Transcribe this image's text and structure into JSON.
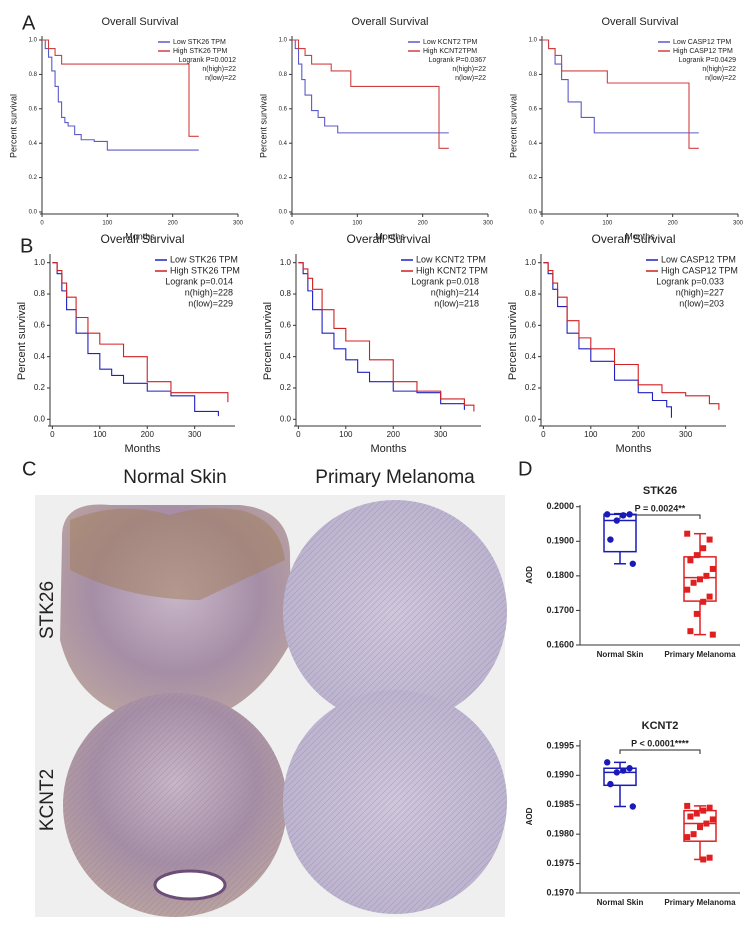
{
  "panel_labels": [
    "A",
    "B",
    "C",
    "D"
  ],
  "ihc": {
    "columns": [
      "Normal Skin",
      "Primary Melanoma"
    ],
    "rows": [
      "STK26",
      "KCNT2"
    ]
  },
  "chart_data": [
    {
      "type": "step",
      "title": "Overall Survival",
      "x_label": "Months",
      "y_label": "Percent survival",
      "xlim": [
        0,
        300
      ],
      "ylim": [
        0,
        1.0
      ],
      "xticks": [
        0,
        100,
        200,
        300
      ],
      "yticks": [
        {
          "value": 0,
          "label": "0.0"
        },
        0.2,
        0.4,
        0.6,
        0.8,
        {
          "value": 1,
          "label": "1.0"
        }
      ],
      "series": [
        {
          "name": "Low STK26 TPM",
          "color": "#5b5bc8",
          "x": [
            0,
            5,
            10,
            15,
            20,
            25,
            30,
            35,
            40,
            50,
            60,
            80,
            100,
            110,
            240
          ],
          "values": [
            1,
            0.95,
            0.9,
            0.82,
            0.73,
            0.64,
            0.55,
            0.52,
            0.5,
            0.45,
            0.42,
            0.41,
            0.36,
            0.36,
            0.36
          ]
        },
        {
          "name": "High STK26 TPM",
          "color": "#d04040",
          "x": [
            0,
            10,
            20,
            30,
            220,
            225,
            240
          ],
          "values": [
            1,
            0.95,
            0.91,
            0.86,
            0.86,
            0.44,
            0.44
          ]
        }
      ],
      "annotations": [
        "Logrank P=0.0012",
        "n(high)=22",
        "n(low)=22"
      ]
    },
    {
      "type": "step",
      "title": "Overall Survival",
      "x_label": "Months",
      "y_label": "Percent survival",
      "xlim": [
        0,
        300
      ],
      "ylim": [
        0,
        1.0
      ],
      "xticks": [
        0,
        100,
        200,
        300
      ],
      "yticks": [
        {
          "value": 0,
          "label": "0.0"
        },
        0.2,
        0.4,
        0.6,
        0.8,
        {
          "value": 1,
          "label": "1.0"
        }
      ],
      "series": [
        {
          "name": "Low KCNT2 TPM",
          "color": "#5b5bc8",
          "x": [
            0,
            5,
            10,
            15,
            20,
            30,
            40,
            50,
            70,
            100,
            240
          ],
          "values": [
            1,
            0.95,
            0.86,
            0.77,
            0.68,
            0.59,
            0.55,
            0.5,
            0.46,
            0.46,
            0.46
          ]
        },
        {
          "name": "High KCNT2TPM",
          "color": "#d04040",
          "x": [
            0,
            10,
            20,
            30,
            60,
            90,
            220,
            225,
            240
          ],
          "values": [
            1,
            0.95,
            0.91,
            0.86,
            0.82,
            0.73,
            0.73,
            0.37,
            0.37
          ]
        }
      ],
      "annotations": [
        "Logrank P=0.0367",
        "n(high)=22",
        "n(low)=22"
      ]
    },
    {
      "type": "step",
      "title": "Overall Survival",
      "x_label": "Months",
      "y_label": "Percent survival",
      "xlim": [
        0,
        300
      ],
      "ylim": [
        0,
        1.0
      ],
      "xticks": [
        0,
        100,
        200,
        300
      ],
      "yticks": [
        {
          "value": 0,
          "label": "0.0"
        },
        0.2,
        0.4,
        0.6,
        0.8,
        {
          "value": 1,
          "label": "1.0"
        }
      ],
      "series": [
        {
          "name": "Low CASP12 TPM",
          "color": "#5b5bc8",
          "x": [
            0,
            10,
            20,
            30,
            40,
            60,
            80,
            240
          ],
          "values": [
            1,
            0.95,
            0.86,
            0.77,
            0.64,
            0.55,
            0.46,
            0.46
          ]
        },
        {
          "name": "High CASP12 TPM",
          "color": "#d04040",
          "x": [
            0,
            10,
            20,
            30,
            100,
            225,
            240
          ],
          "values": [
            1,
            0.95,
            0.91,
            0.82,
            0.75,
            0.37,
            0.37
          ]
        }
      ],
      "annotations": [
        "Logrank P=0.0429",
        "n(high)=22",
        "n(low)=22"
      ]
    },
    {
      "type": "step",
      "title": "Overall Survival",
      "x_label": "Months",
      "y_label": "Percent survival",
      "xlim": [
        -5,
        385
      ],
      "ylim": [
        -0.03,
        1.03
      ],
      "xticks": [
        0,
        100,
        200,
        300
      ],
      "yticks": [
        {
          "value": 0,
          "label": "0.0"
        },
        0.2,
        0.4,
        0.6,
        0.8,
        {
          "value": 1,
          "label": "1.0"
        }
      ],
      "series": [
        {
          "name": "Low STK26 TPM",
          "color": "#2020c0",
          "x": [
            0,
            10,
            20,
            30,
            50,
            75,
            100,
            125,
            150,
            200,
            250,
            300,
            350
          ],
          "values": [
            1,
            0.93,
            0.82,
            0.7,
            0.55,
            0.42,
            0.32,
            0.28,
            0.23,
            0.18,
            0.15,
            0.05,
            0.02
          ]
        },
        {
          "name": "High STK26 TPM",
          "color": "#d02020",
          "x": [
            0,
            10,
            20,
            30,
            50,
            75,
            100,
            150,
            200,
            250,
            300,
            350,
            370
          ],
          "values": [
            1,
            0.95,
            0.87,
            0.78,
            0.65,
            0.55,
            0.48,
            0.4,
            0.24,
            0.17,
            0.17,
            0.17,
            0.11
          ]
        }
      ],
      "annotations": [
        "Logrank p=0.014",
        "n(high)=228",
        "n(low)=229"
      ]
    },
    {
      "type": "step",
      "title": "Overall Survival",
      "x_label": "Months",
      "y_label": "Percent survival",
      "xlim": [
        -5,
        385
      ],
      "ylim": [
        -0.03,
        1.03
      ],
      "xticks": [
        0,
        100,
        200,
        300
      ],
      "yticks": [
        {
          "value": 0,
          "label": "0.0"
        },
        0.2,
        0.4,
        0.6,
        0.8,
        {
          "value": 1,
          "label": "1.0"
        }
      ],
      "series": [
        {
          "name": "Low KCNT2 TPM",
          "color": "#2020c0",
          "x": [
            0,
            10,
            20,
            30,
            50,
            75,
            100,
            125,
            150,
            200,
            250,
            300,
            350
          ],
          "values": [
            1,
            0.93,
            0.82,
            0.7,
            0.55,
            0.45,
            0.38,
            0.3,
            0.24,
            0.18,
            0.17,
            0.1,
            0.06
          ]
        },
        {
          "name": "High KCNT2 TPM",
          "color": "#d02020",
          "x": [
            0,
            10,
            20,
            30,
            50,
            75,
            100,
            150,
            200,
            250,
            300,
            350,
            370
          ],
          "values": [
            1,
            0.96,
            0.9,
            0.83,
            0.7,
            0.58,
            0.5,
            0.38,
            0.24,
            0.18,
            0.13,
            0.09,
            0.05
          ]
        }
      ],
      "annotations": [
        "Logrank p=0.018",
        "n(high)=214",
        "n(low)=218"
      ]
    },
    {
      "type": "step",
      "title": "Overall Survival",
      "x_label": "Months",
      "y_label": "Percent survival",
      "xlim": [
        -5,
        385
      ],
      "ylim": [
        -0.03,
        1.03
      ],
      "xticks": [
        0,
        100,
        200,
        300
      ],
      "yticks": [
        {
          "value": 0,
          "label": "0.0"
        },
        0.2,
        0.4,
        0.6,
        0.8,
        {
          "value": 1,
          "label": "1.0"
        }
      ],
      "series": [
        {
          "name": "Low CASP12 TPM",
          "color": "#2020c0",
          "x": [
            0,
            10,
            20,
            30,
            50,
            75,
            100,
            150,
            200,
            230,
            260,
            270
          ],
          "values": [
            1,
            0.93,
            0.83,
            0.72,
            0.55,
            0.45,
            0.37,
            0.25,
            0.17,
            0.12,
            0.08,
            0.01
          ]
        },
        {
          "name": "High CASP12 TPM",
          "color": "#d02020",
          "x": [
            0,
            10,
            20,
            30,
            50,
            75,
            100,
            150,
            200,
            250,
            300,
            350,
            370
          ],
          "values": [
            1,
            0.95,
            0.87,
            0.78,
            0.63,
            0.52,
            0.45,
            0.35,
            0.22,
            0.17,
            0.15,
            0.1,
            0.06
          ]
        }
      ],
      "annotations": [
        "Logrank p=0.033",
        "n(high)=227",
        "n(low)=203"
      ]
    },
    {
      "type": "box",
      "title": "STK26",
      "y_label": "AOD",
      "annotation": "P = 0.0024**",
      "categories": [
        "Normal Skin",
        "Primary Melanoma"
      ],
      "ylim": [
        0.16,
        0.2005
      ],
      "yticks": [
        {
          "value": 0.16,
          "label": "0.1600"
        },
        {
          "value": 0.17,
          "label": "0.1700"
        },
        {
          "value": 0.18,
          "label": "0.1800"
        },
        {
          "value": 0.19,
          "label": "0.1900"
        },
        {
          "value": 0.2,
          "label": "0.2000"
        }
      ],
      "boxes": [
        {
          "color": "#1a1ab8",
          "min": 0.1835,
          "q1": 0.187,
          "median": 0.196,
          "q3": 0.1978,
          "max": 0.198,
          "points": [
            0.1978,
            0.1978,
            0.1975,
            0.196,
            0.1905,
            0.1835
          ]
        },
        {
          "color": "#e02020",
          "min": 0.163,
          "q1": 0.1727,
          "median": 0.1795,
          "q3": 0.1855,
          "max": 0.1922,
          "points": [
            0.1922,
            0.1905,
            0.188,
            0.186,
            0.1845,
            0.182,
            0.18,
            0.179,
            0.178,
            0.176,
            0.174,
            0.1725,
            0.169,
            0.164,
            0.163
          ]
        }
      ]
    },
    {
      "type": "box",
      "title": "KCNT2",
      "y_label": "AOD",
      "annotation": "P < 0.0001****",
      "categories": [
        "Normal Skin",
        "Primary Melanoma"
      ],
      "ylim": [
        0.197,
        0.1996
      ],
      "yticks": [
        {
          "value": 0.197,
          "label": "0.1970"
        },
        0.1975,
        {
          "value": 0.198,
          "label": "0.1980"
        },
        0.1985,
        {
          "value": 0.199,
          "label": "0.1990"
        },
        0.1995
      ],
      "boxes": [
        {
          "color": "#1a1ab8",
          "min": 0.19847,
          "q1": 0.19883,
          "median": 0.19905,
          "q3": 0.19912,
          "max": 0.19922,
          "points": [
            0.19922,
            0.19912,
            0.19908,
            0.19905,
            0.19885,
            0.19847
          ]
        },
        {
          "color": "#e02020",
          "min": 0.19757,
          "q1": 0.19788,
          "median": 0.19818,
          "q3": 0.1984,
          "max": 0.19848,
          "points": [
            0.19848,
            0.19845,
            0.1984,
            0.19835,
            0.1983,
            0.19825,
            0.19818,
            0.19812,
            0.198,
            0.19795,
            0.1976,
            0.19757
          ]
        }
      ]
    }
  ]
}
